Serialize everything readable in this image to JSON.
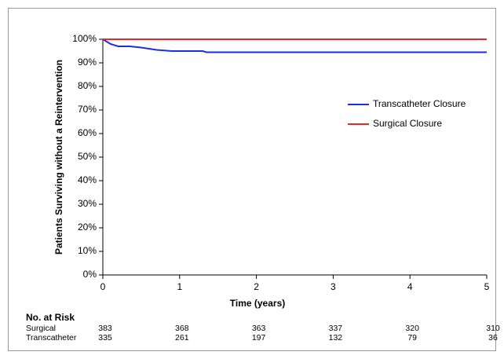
{
  "chart_data": {
    "type": "line",
    "xlabel": "Time (years)",
    "ylabel": "Patients Surviving without a Reintervention",
    "xlim": [
      0,
      5
    ],
    "xticks": [
      0,
      1,
      2,
      3,
      4,
      5
    ],
    "ylim": [
      0,
      100
    ],
    "yticks": [
      {
        "value": 0,
        "label": "0%"
      },
      {
        "value": 10,
        "label": "10%"
      },
      {
        "value": 20,
        "label": "20%"
      },
      {
        "value": 30,
        "label": "30%"
      },
      {
        "value": 40,
        "label": "40%"
      },
      {
        "value": 50,
        "label": "50%"
      },
      {
        "value": 60,
        "label": "60%"
      },
      {
        "value": 70,
        "label": "70%"
      },
      {
        "value": 80,
        "label": "80%"
      },
      {
        "value": 90,
        "label": "90%"
      },
      {
        "value": 100,
        "label": "100%"
      }
    ],
    "series": [
      {
        "name": "Transcatheter Closure",
        "color": "#1f2ee6",
        "x": [
          0,
          0.1,
          0.2,
          0.35,
          0.5,
          0.7,
          0.9,
          1.3,
          1.35,
          5
        ],
        "values": [
          100,
          98,
          97,
          97,
          96.5,
          95.5,
          95,
          95,
          94.5,
          94.5
        ]
      },
      {
        "name": "Surgical Closure",
        "color": "#e62828",
        "x": [
          0,
          5
        ],
        "values": [
          100,
          100
        ]
      }
    ],
    "risk_table": {
      "title": "No. at Risk",
      "rows": [
        {
          "label": "Surgical",
          "values": [
            "383",
            "368",
            "363",
            "337",
            "320",
            "310"
          ]
        },
        {
          "label": "Transcatheter",
          "values": [
            "335",
            "261",
            "197",
            "132",
            "79",
            "36"
          ]
        }
      ]
    }
  }
}
